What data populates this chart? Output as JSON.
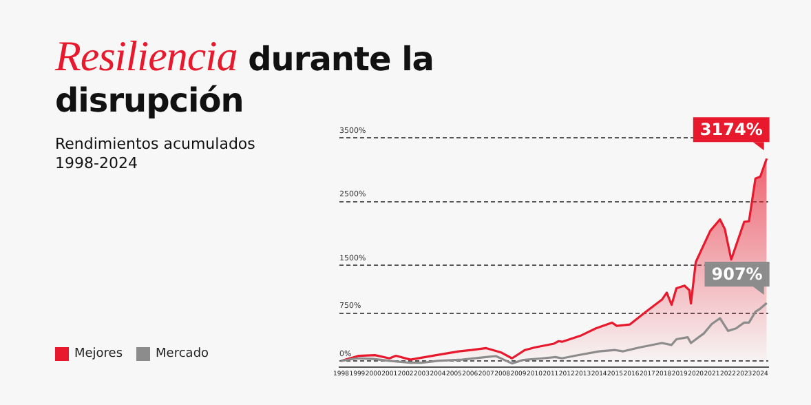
{
  "chart_data": {
    "type": "line",
    "title": "Resiliencia durante la disrupción",
    "subtitle": "Rendimientos acumulados 1998-2024",
    "xlim": [
      1997.9,
      2024.5
    ],
    "xticks": [
      1998,
      1999,
      2000,
      2001,
      2002,
      2003,
      2004,
      2005,
      2006,
      2007,
      2008,
      2009,
      2010,
      2011,
      2012,
      2013,
      2014,
      2015,
      2016,
      2017,
      2018,
      2019,
      2020,
      2021,
      2022,
      2023,
      2024
    ],
    "ylim": [
      -100,
      3500
    ],
    "yticks": [
      {
        "value": 0,
        "label": "0%"
      },
      {
        "value": 750,
        "label": "750%"
      },
      {
        "value": 1500,
        "label": "1500%"
      },
      {
        "value": 2500,
        "label": "2500%"
      },
      {
        "value": 3500,
        "label": "3500%"
      }
    ],
    "grid": "y",
    "legend": "bottom left",
    "marker": "none",
    "series": [
      {
        "name": "Mejores",
        "type": "area",
        "color": "#e8192c",
        "x": [
          1998,
          1999.1,
          2000.1,
          2001,
          2001.4,
          2002.3,
          2003.9,
          2005.3,
          2006.1,
          2007,
          2007.9,
          2008.6,
          2009.4,
          2010,
          2011.2,
          2011.5,
          2011.7,
          2012.9,
          2013.8,
          2014.8,
          2015.1,
          2015.9,
          2016.9,
          2017.9,
          2018.2,
          2018.5,
          2018.8,
          2019.3,
          2019.6,
          2019.7,
          2020,
          2020.9,
          2021.5,
          2021.8,
          2022.2,
          2023,
          2023.3,
          2023.7,
          2024,
          2024.4
        ],
        "values": [
          0,
          80,
          90,
          40,
          80,
          20,
          90,
          150,
          170,
          200,
          135,
          40,
          170,
          210,
          270,
          310,
          300,
          400,
          510,
          600,
          550,
          570,
          770,
          960,
          1070,
          880,
          1140,
          1180,
          1110,
          900,
          1550,
          2040,
          2220,
          2070,
          1590,
          2180,
          2190,
          2860,
          2890,
          3174
        ],
        "value_labels": [
          null,
          null,
          null,
          null,
          null,
          null,
          null,
          null,
          null,
          null,
          null,
          null,
          null,
          null,
          null,
          null,
          null,
          null,
          null,
          null,
          null,
          null,
          null,
          null,
          null,
          null,
          null,
          null,
          null,
          null,
          null,
          null,
          null,
          null,
          null,
          null,
          null,
          null,
          null,
          "3174%"
        ]
      },
      {
        "name": "Mercado",
        "type": "line",
        "color": "#8c8c8c",
        "x": [
          1998,
          1999,
          2000,
          2001,
          2002.3,
          2003,
          2004,
          2005.5,
          2007,
          2007.6,
          2008.6,
          2009.3,
          2010.5,
          2011.3,
          2011.7,
          2012.5,
          2014,
          2015,
          2015.5,
          2016.5,
          2017.9,
          2018.5,
          2018.8,
          2019.5,
          2019.7,
          2020.5,
          2021,
          2021.5,
          2022,
          2022.5,
          2023,
          2023.3,
          2023.7,
          2024,
          2024.4
        ],
        "values": [
          0,
          40,
          30,
          0,
          -30,
          -30,
          0,
          20,
          60,
          75,
          -40,
          15,
          40,
          60,
          40,
          80,
          150,
          170,
          150,
          210,
          280,
          250,
          340,
          370,
          280,
          430,
          580,
          670,
          470,
          510,
          600,
          600,
          770,
          820,
          907
        ],
        "value_labels": [
          null,
          null,
          null,
          null,
          null,
          null,
          null,
          null,
          null,
          null,
          null,
          null,
          null,
          null,
          null,
          null,
          null,
          null,
          null,
          null,
          null,
          null,
          null,
          null,
          null,
          null,
          null,
          null,
          null,
          null,
          null,
          null,
          null,
          null,
          "907%"
        ]
      }
    ]
  }
}
